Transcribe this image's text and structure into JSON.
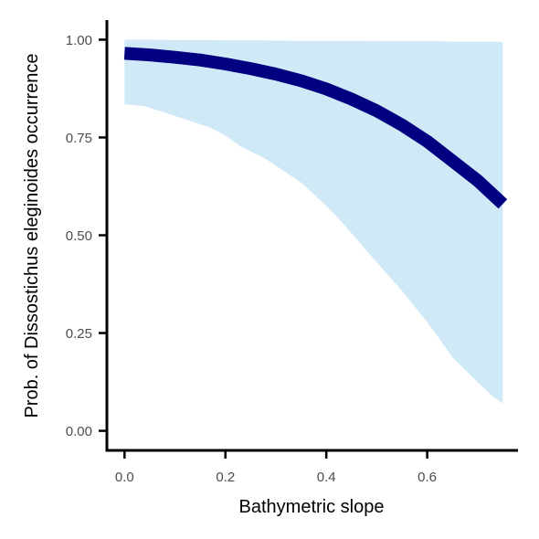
{
  "chart_data": {
    "type": "line",
    "xlabel": "Bathymetric slope",
    "ylabel": "Prob. of  Dissostichus eleginoides  occurrence",
    "xlim": [
      -0.035,
      0.78
    ],
    "ylim": [
      -0.05,
      1.05
    ],
    "x_ticks": [
      0.0,
      0.2,
      0.4,
      0.6
    ],
    "x_tick_labels": [
      "0.0",
      "0.2",
      "0.4",
      "0.6"
    ],
    "y_ticks": [
      0.0,
      0.25,
      0.5,
      0.75,
      1.0
    ],
    "y_tick_labels": [
      "0.00",
      "0.25",
      "0.50",
      "0.75",
      "1.00"
    ],
    "grid": false,
    "series": [
      {
        "role": "fit",
        "color": "#000080",
        "x": [
          0.0,
          0.05,
          0.1,
          0.15,
          0.2,
          0.25,
          0.3,
          0.35,
          0.4,
          0.45,
          0.5,
          0.55,
          0.6,
          0.65,
          0.7,
          0.75
        ],
        "y": [
          0.965,
          0.961,
          0.955,
          0.948,
          0.938,
          0.926,
          0.912,
          0.895,
          0.874,
          0.848,
          0.818,
          0.782,
          0.74,
          0.69,
          0.64,
          0.58
        ]
      }
    ],
    "confidence_band": {
      "color": "#cfe9f6",
      "x": [
        0.0,
        0.04,
        0.1,
        0.17,
        0.2,
        0.23,
        0.28,
        0.35,
        0.4,
        0.43,
        0.48,
        0.55,
        0.6,
        0.63,
        0.65,
        0.7,
        0.73,
        0.75
      ],
      "lower": [
        0.835,
        0.83,
        0.805,
        0.775,
        0.755,
        0.727,
        0.695,
        0.635,
        0.575,
        0.535,
        0.46,
        0.358,
        0.278,
        0.225,
        0.188,
        0.125,
        0.088,
        0.07
      ],
      "upper": [
        1.0,
        1.0,
        0.999,
        0.999,
        0.998,
        0.998,
        0.998,
        0.997,
        0.997,
        0.997,
        0.997,
        0.996,
        0.996,
        0.996,
        0.995,
        0.995,
        0.995,
        0.995
      ]
    }
  }
}
